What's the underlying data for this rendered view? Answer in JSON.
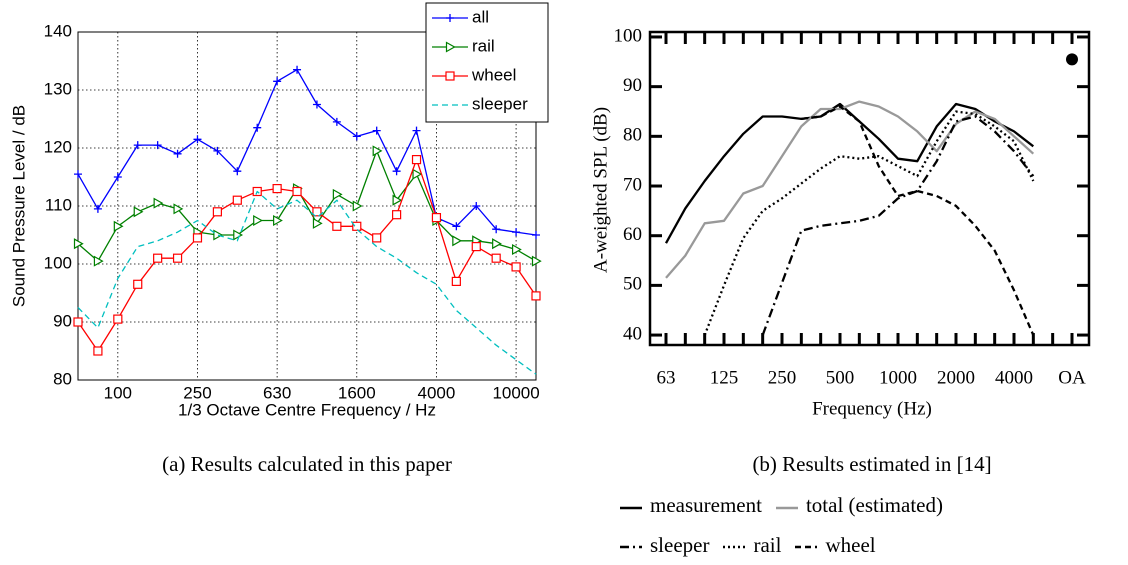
{
  "chart_data": [
    {
      "type": "line",
      "caption": "(a) Results calculated in this paper",
      "x_label": "1/3 Octave Centre Frequency / Hz",
      "y_label": "Sound Pressure Level / dB",
      "categories": [
        null,
        null,
        100,
        null,
        null,
        null,
        250,
        null,
        null,
        null,
        630,
        null,
        null,
        null,
        1600,
        null,
        null,
        null,
        4000,
        null,
        null,
        null,
        10000,
        null
      ],
      "ylim": [
        80,
        140
      ],
      "yticks": [
        80,
        90,
        100,
        110,
        120,
        130,
        140
      ],
      "grid": true,
      "legend": "upper right",
      "series": [
        {
          "name": "all",
          "color": "#0000ff",
          "marker": "plus",
          "dash": "solid",
          "values": [
            115.5,
            109.5,
            115,
            120.5,
            120.5,
            119,
            121.5,
            119.5,
            116,
            123.5,
            131.5,
            133.5,
            127.5,
            124.5,
            122,
            123,
            116,
            123,
            108,
            106.5,
            110,
            106,
            105.5,
            105
          ]
        },
        {
          "name": "rail",
          "color": "#008000",
          "marker": "triangle-right",
          "dash": "solid",
          "values": [
            103.5,
            100.5,
            106.5,
            109,
            110.5,
            109.5,
            105.5,
            105,
            105,
            107.5,
            107.5,
            113,
            107,
            112,
            110,
            119.5,
            111,
            115.5,
            107.5,
            104,
            104,
            103.5,
            102.5,
            100.5
          ]
        },
        {
          "name": "wheel",
          "color": "#ff0000",
          "marker": "square",
          "dash": "solid",
          "values": [
            90,
            85,
            90.5,
            96.5,
            101,
            101,
            104.5,
            109,
            111,
            112.5,
            113,
            112.5,
            109,
            106.5,
            106.5,
            104.5,
            108.5,
            118,
            108,
            97,
            103,
            101,
            99.5,
            94.5
          ]
        },
        {
          "name": "sleeper",
          "color": "#00bfbf",
          "marker": "none",
          "dash": "dashed",
          "values": [
            92.5,
            89,
            97.5,
            103,
            104,
            105.5,
            107.5,
            105,
            104,
            112.5,
            109.5,
            111,
            108,
            111,
            106,
            103,
            101,
            98.5,
            96.5,
            92,
            89,
            86,
            83.5,
            81
          ]
        }
      ]
    },
    {
      "type": "line",
      "caption": "(b) Results estimated in [14]",
      "x_label": "Frequency (Hz)",
      "y_label": "A-weighted SPL (dB)",
      "categories": [
        63,
        null,
        null,
        125,
        null,
        null,
        250,
        null,
        null,
        500,
        null,
        null,
        1000,
        null,
        null,
        2000,
        null,
        null,
        4000,
        null,
        null,
        "OA"
      ],
      "ylim": [
        38,
        101
      ],
      "yticks": [
        40,
        50,
        60,
        70,
        80,
        90,
        100
      ],
      "grid": false,
      "series": [
        {
          "name": "measurement",
          "color": "#000000",
          "dash": "solid",
          "values": [
            58.5,
            65.5,
            71,
            76,
            80.5,
            84,
            84,
            83.5,
            84,
            86.5,
            83,
            79.5,
            75.5,
            75,
            82,
            86.5,
            85.5,
            83,
            81,
            78,
            null,
            95.5
          ]
        },
        {
          "name": "total (estimated)",
          "color": "#999999",
          "dash": "solid",
          "values": [
            51.5,
            56,
            62.5,
            63,
            68.5,
            70,
            76,
            82,
            85.5,
            85.5,
            87,
            86,
            84,
            81,
            77,
            82.5,
            85,
            83.5,
            80,
            76.5,
            null,
            null
          ]
        },
        {
          "name": "sleeper",
          "color": "#000000",
          "dash": "dash-dot",
          "values": [
            null,
            null,
            null,
            null,
            null,
            40,
            50.5,
            61,
            62,
            62.5,
            63,
            64,
            67.5,
            69,
            75,
            83,
            84,
            81,
            77,
            72,
            null,
            null
          ]
        },
        {
          "name": "rail",
          "color": "#000000",
          "dash": "dotted",
          "values": [
            null,
            null,
            40,
            50,
            59.5,
            65,
            67.5,
            70.5,
            73.5,
            76,
            75.5,
            76,
            74,
            72,
            79,
            85,
            84.5,
            82,
            79,
            71,
            null,
            null
          ]
        },
        {
          "name": "wheel",
          "color": "#000000",
          "dash": "dashed",
          "values": [
            null,
            null,
            null,
            null,
            null,
            null,
            null,
            83.5,
            84,
            86,
            83,
            74,
            68,
            69,
            68,
            66,
            62,
            57,
            49,
            40,
            null,
            null
          ]
        }
      ]
    }
  ]
}
